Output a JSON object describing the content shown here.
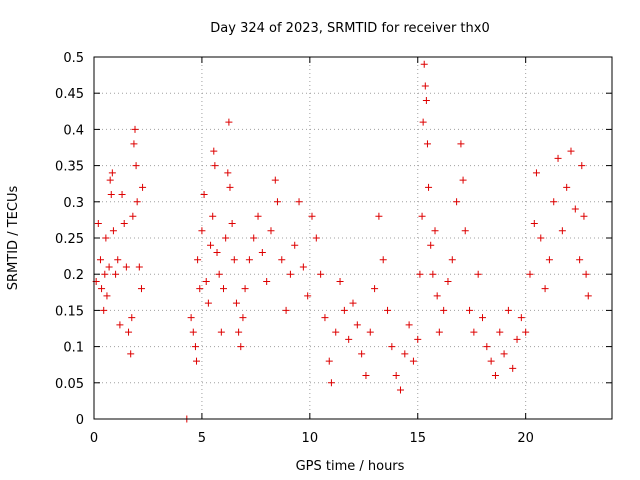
{
  "chart_data": {
    "type": "scatter",
    "title": "Day 324 of 2023, SRMTID for receiver thx0",
    "xlabel": "GPS time / hours",
    "ylabel": "SRMTID / TECUs",
    "xlim": [
      0,
      24
    ],
    "ylim": [
      0,
      0.5
    ],
    "xticks": [
      0,
      5,
      10,
      15,
      20
    ],
    "xtick_labels": [
      "0",
      "5",
      "10",
      "15",
      "20"
    ],
    "yticks": [
      0,
      0.05,
      0.1,
      0.15,
      0.2,
      0.25,
      0.3,
      0.35,
      0.4,
      0.45,
      0.5
    ],
    "ytick_labels": [
      "0",
      "0.05",
      "0.1",
      "0.15",
      "0.2",
      "0.25",
      "0.3",
      "0.35",
      "0.4",
      "0.45",
      "0.5"
    ],
    "grid": true,
    "marker": "+",
    "color": "#dd0000",
    "series": [
      {
        "points": [
          [
            0.1,
            0.19
          ],
          [
            0.2,
            0.27
          ],
          [
            0.3,
            0.22
          ],
          [
            0.35,
            0.18
          ],
          [
            0.45,
            0.15
          ],
          [
            0.5,
            0.2
          ],
          [
            0.55,
            0.25
          ],
          [
            0.6,
            0.17
          ],
          [
            0.7,
            0.21
          ],
          [
            0.75,
            0.33
          ],
          [
            0.8,
            0.31
          ],
          [
            0.85,
            0.34
          ],
          [
            0.9,
            0.26
          ],
          [
            1.0,
            0.2
          ],
          [
            1.1,
            0.22
          ],
          [
            1.2,
            0.13
          ],
          [
            1.3,
            0.31
          ],
          [
            1.4,
            0.27
          ],
          [
            1.5,
            0.21
          ],
          [
            1.6,
            0.12
          ],
          [
            1.7,
            0.09
          ],
          [
            1.75,
            0.14
          ],
          [
            1.8,
            0.28
          ],
          [
            1.85,
            0.38
          ],
          [
            1.9,
            0.4
          ],
          [
            1.95,
            0.35
          ],
          [
            2.0,
            0.3
          ],
          [
            2.1,
            0.21
          ],
          [
            2.2,
            0.18
          ],
          [
            2.25,
            0.32
          ],
          [
            4.3,
            0.0
          ],
          [
            4.5,
            0.14
          ],
          [
            4.6,
            0.12
          ],
          [
            4.7,
            0.1
          ],
          [
            4.75,
            0.08
          ],
          [
            4.8,
            0.22
          ],
          [
            4.9,
            0.18
          ],
          [
            5.0,
            0.26
          ],
          [
            5.1,
            0.31
          ],
          [
            5.2,
            0.19
          ],
          [
            5.3,
            0.16
          ],
          [
            5.4,
            0.24
          ],
          [
            5.5,
            0.28
          ],
          [
            5.55,
            0.37
          ],
          [
            5.6,
            0.35
          ],
          [
            5.7,
            0.23
          ],
          [
            5.8,
            0.2
          ],
          [
            5.9,
            0.12
          ],
          [
            6.0,
            0.18
          ],
          [
            6.1,
            0.25
          ],
          [
            6.2,
            0.34
          ],
          [
            6.25,
            0.41
          ],
          [
            6.3,
            0.32
          ],
          [
            6.4,
            0.27
          ],
          [
            6.5,
            0.22
          ],
          [
            6.6,
            0.16
          ],
          [
            6.7,
            0.12
          ],
          [
            6.8,
            0.1
          ],
          [
            6.9,
            0.14
          ],
          [
            7.0,
            0.18
          ],
          [
            7.2,
            0.22
          ],
          [
            7.4,
            0.25
          ],
          [
            7.6,
            0.28
          ],
          [
            7.8,
            0.23
          ],
          [
            8.0,
            0.19
          ],
          [
            8.2,
            0.26
          ],
          [
            8.4,
            0.33
          ],
          [
            8.5,
            0.3
          ],
          [
            8.7,
            0.22
          ],
          [
            8.9,
            0.15
          ],
          [
            9.1,
            0.2
          ],
          [
            9.3,
            0.24
          ],
          [
            9.5,
            0.3
          ],
          [
            9.7,
            0.21
          ],
          [
            9.9,
            0.17
          ],
          [
            10.1,
            0.28
          ],
          [
            10.3,
            0.25
          ],
          [
            10.5,
            0.2
          ],
          [
            10.7,
            0.14
          ],
          [
            10.9,
            0.08
          ],
          [
            11.0,
            0.05
          ],
          [
            11.2,
            0.12
          ],
          [
            11.4,
            0.19
          ],
          [
            11.6,
            0.15
          ],
          [
            11.8,
            0.11
          ],
          [
            12.0,
            0.16
          ],
          [
            12.2,
            0.13
          ],
          [
            12.4,
            0.09
          ],
          [
            12.6,
            0.06
          ],
          [
            12.8,
            0.12
          ],
          [
            13.0,
            0.18
          ],
          [
            13.2,
            0.28
          ],
          [
            13.4,
            0.22
          ],
          [
            13.6,
            0.15
          ],
          [
            13.8,
            0.1
          ],
          [
            14.0,
            0.06
          ],
          [
            14.2,
            0.04
          ],
          [
            14.4,
            0.09
          ],
          [
            14.6,
            0.13
          ],
          [
            14.8,
            0.08
          ],
          [
            15.0,
            0.11
          ],
          [
            15.1,
            0.2
          ],
          [
            15.2,
            0.28
          ],
          [
            15.25,
            0.41
          ],
          [
            15.3,
            0.49
          ],
          [
            15.35,
            0.46
          ],
          [
            15.4,
            0.44
          ],
          [
            15.45,
            0.38
          ],
          [
            15.5,
            0.32
          ],
          [
            15.6,
            0.24
          ],
          [
            15.7,
            0.2
          ],
          [
            15.8,
            0.26
          ],
          [
            15.9,
            0.17
          ],
          [
            16.0,
            0.12
          ],
          [
            16.2,
            0.15
          ],
          [
            16.4,
            0.19
          ],
          [
            16.6,
            0.22
          ],
          [
            16.8,
            0.3
          ],
          [
            17.0,
            0.38
          ],
          [
            17.1,
            0.33
          ],
          [
            17.2,
            0.26
          ],
          [
            17.4,
            0.15
          ],
          [
            17.6,
            0.12
          ],
          [
            17.8,
            0.2
          ],
          [
            18.0,
            0.14
          ],
          [
            18.2,
            0.1
          ],
          [
            18.4,
            0.08
          ],
          [
            18.6,
            0.06
          ],
          [
            18.8,
            0.12
          ],
          [
            19.0,
            0.09
          ],
          [
            19.2,
            0.15
          ],
          [
            19.4,
            0.07
          ],
          [
            19.6,
            0.11
          ],
          [
            19.8,
            0.14
          ],
          [
            20.0,
            0.12
          ],
          [
            20.2,
            0.2
          ],
          [
            20.4,
            0.27
          ],
          [
            20.5,
            0.34
          ],
          [
            20.7,
            0.25
          ],
          [
            20.9,
            0.18
          ],
          [
            21.1,
            0.22
          ],
          [
            21.3,
            0.3
          ],
          [
            21.5,
            0.36
          ],
          [
            21.7,
            0.26
          ],
          [
            21.9,
            0.32
          ],
          [
            22.1,
            0.37
          ],
          [
            22.3,
            0.29
          ],
          [
            22.5,
            0.22
          ],
          [
            22.6,
            0.35
          ],
          [
            22.7,
            0.28
          ],
          [
            22.8,
            0.2
          ],
          [
            22.9,
            0.17
          ]
        ]
      }
    ]
  }
}
